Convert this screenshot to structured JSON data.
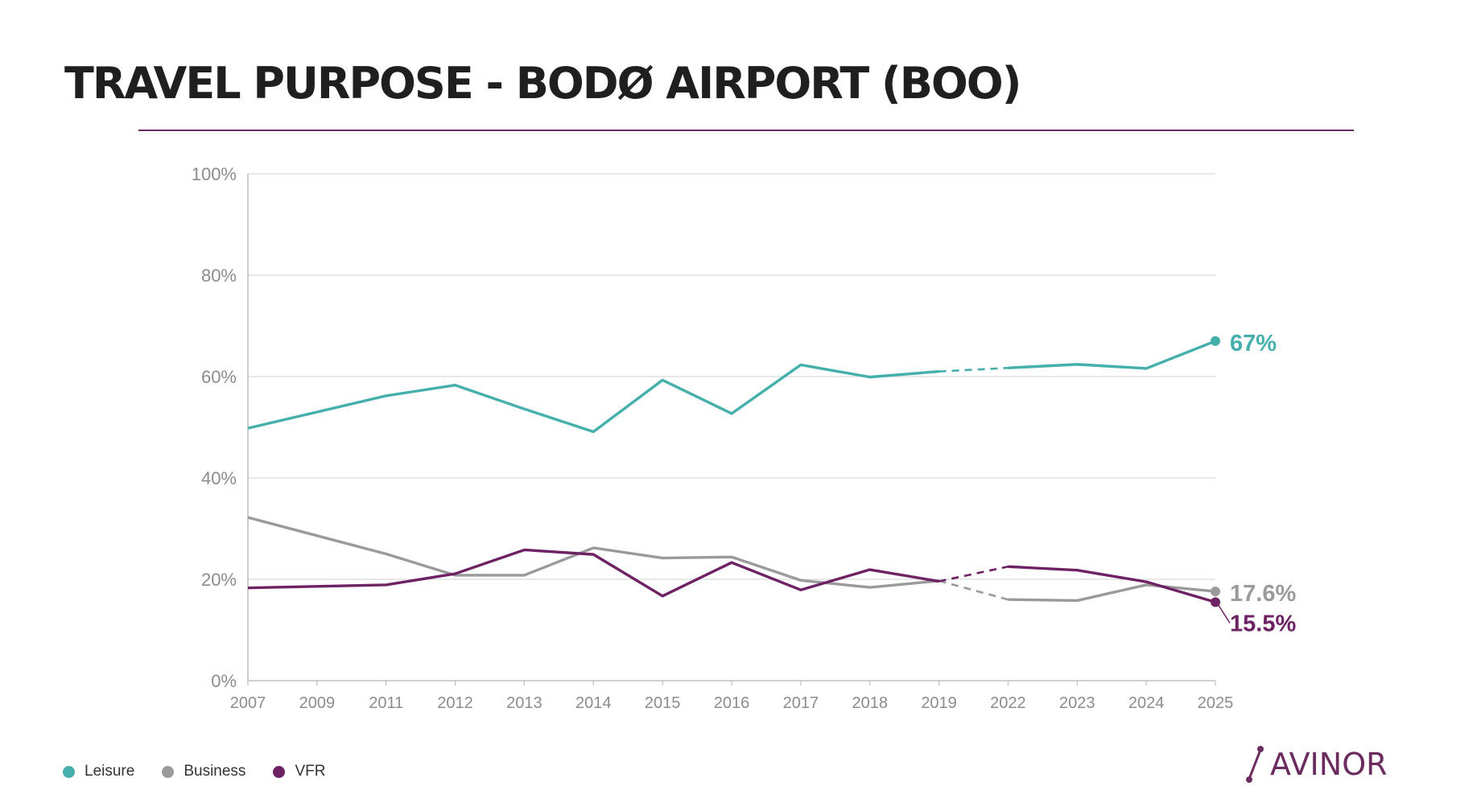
{
  "page": {
    "title": "TRAVEL PURPOSE -  BODØ AIRPORT (BOO)"
  },
  "chart_data": {
    "type": "line",
    "title": "TRAVEL PURPOSE -  BODØ AIRPORT (BOO)",
    "xlabel": "",
    "ylabel": "",
    "categories": [
      "2007",
      "2009",
      "2011",
      "2012",
      "2013",
      "2014",
      "2015",
      "2016",
      "2017",
      "2018",
      "2019",
      "2022",
      "2023",
      "2024",
      "2025"
    ],
    "y_ticks": [
      "0%",
      "20%",
      "40%",
      "60%",
      "80%",
      "100%"
    ],
    "ylim": [
      0,
      100
    ],
    "grid": true,
    "legend_placement": "bottom-left",
    "dashed_gap": {
      "from": "2019",
      "to": "2022"
    },
    "series": [
      {
        "name": "Leisure",
        "color": "#45b0ab",
        "end_label": "67%",
        "values": [
          49.8,
          53.0,
          56.2,
          58.3,
          53.6,
          49.1,
          59.3,
          52.7,
          62.3,
          59.9,
          61.0,
          61.7,
          62.4,
          61.6,
          67.0
        ]
      },
      {
        "name": "Business",
        "color": "#9a9a9a",
        "end_label": "17.6%",
        "values": [
          32.2,
          28.6,
          25.0,
          20.8,
          20.8,
          26.2,
          24.2,
          24.4,
          19.8,
          18.4,
          19.7,
          16.0,
          15.8,
          18.9,
          17.6
        ]
      },
      {
        "name": "VFR",
        "color": "#6e2163",
        "end_label": "15.5%",
        "values": [
          18.3,
          18.6,
          18.9,
          21.1,
          25.8,
          24.9,
          16.7,
          23.3,
          17.9,
          21.9,
          19.6,
          22.5,
          21.8,
          19.5,
          15.5
        ]
      }
    ]
  },
  "logo": {
    "text": "AVINOR",
    "color": "#6b2b5e"
  }
}
